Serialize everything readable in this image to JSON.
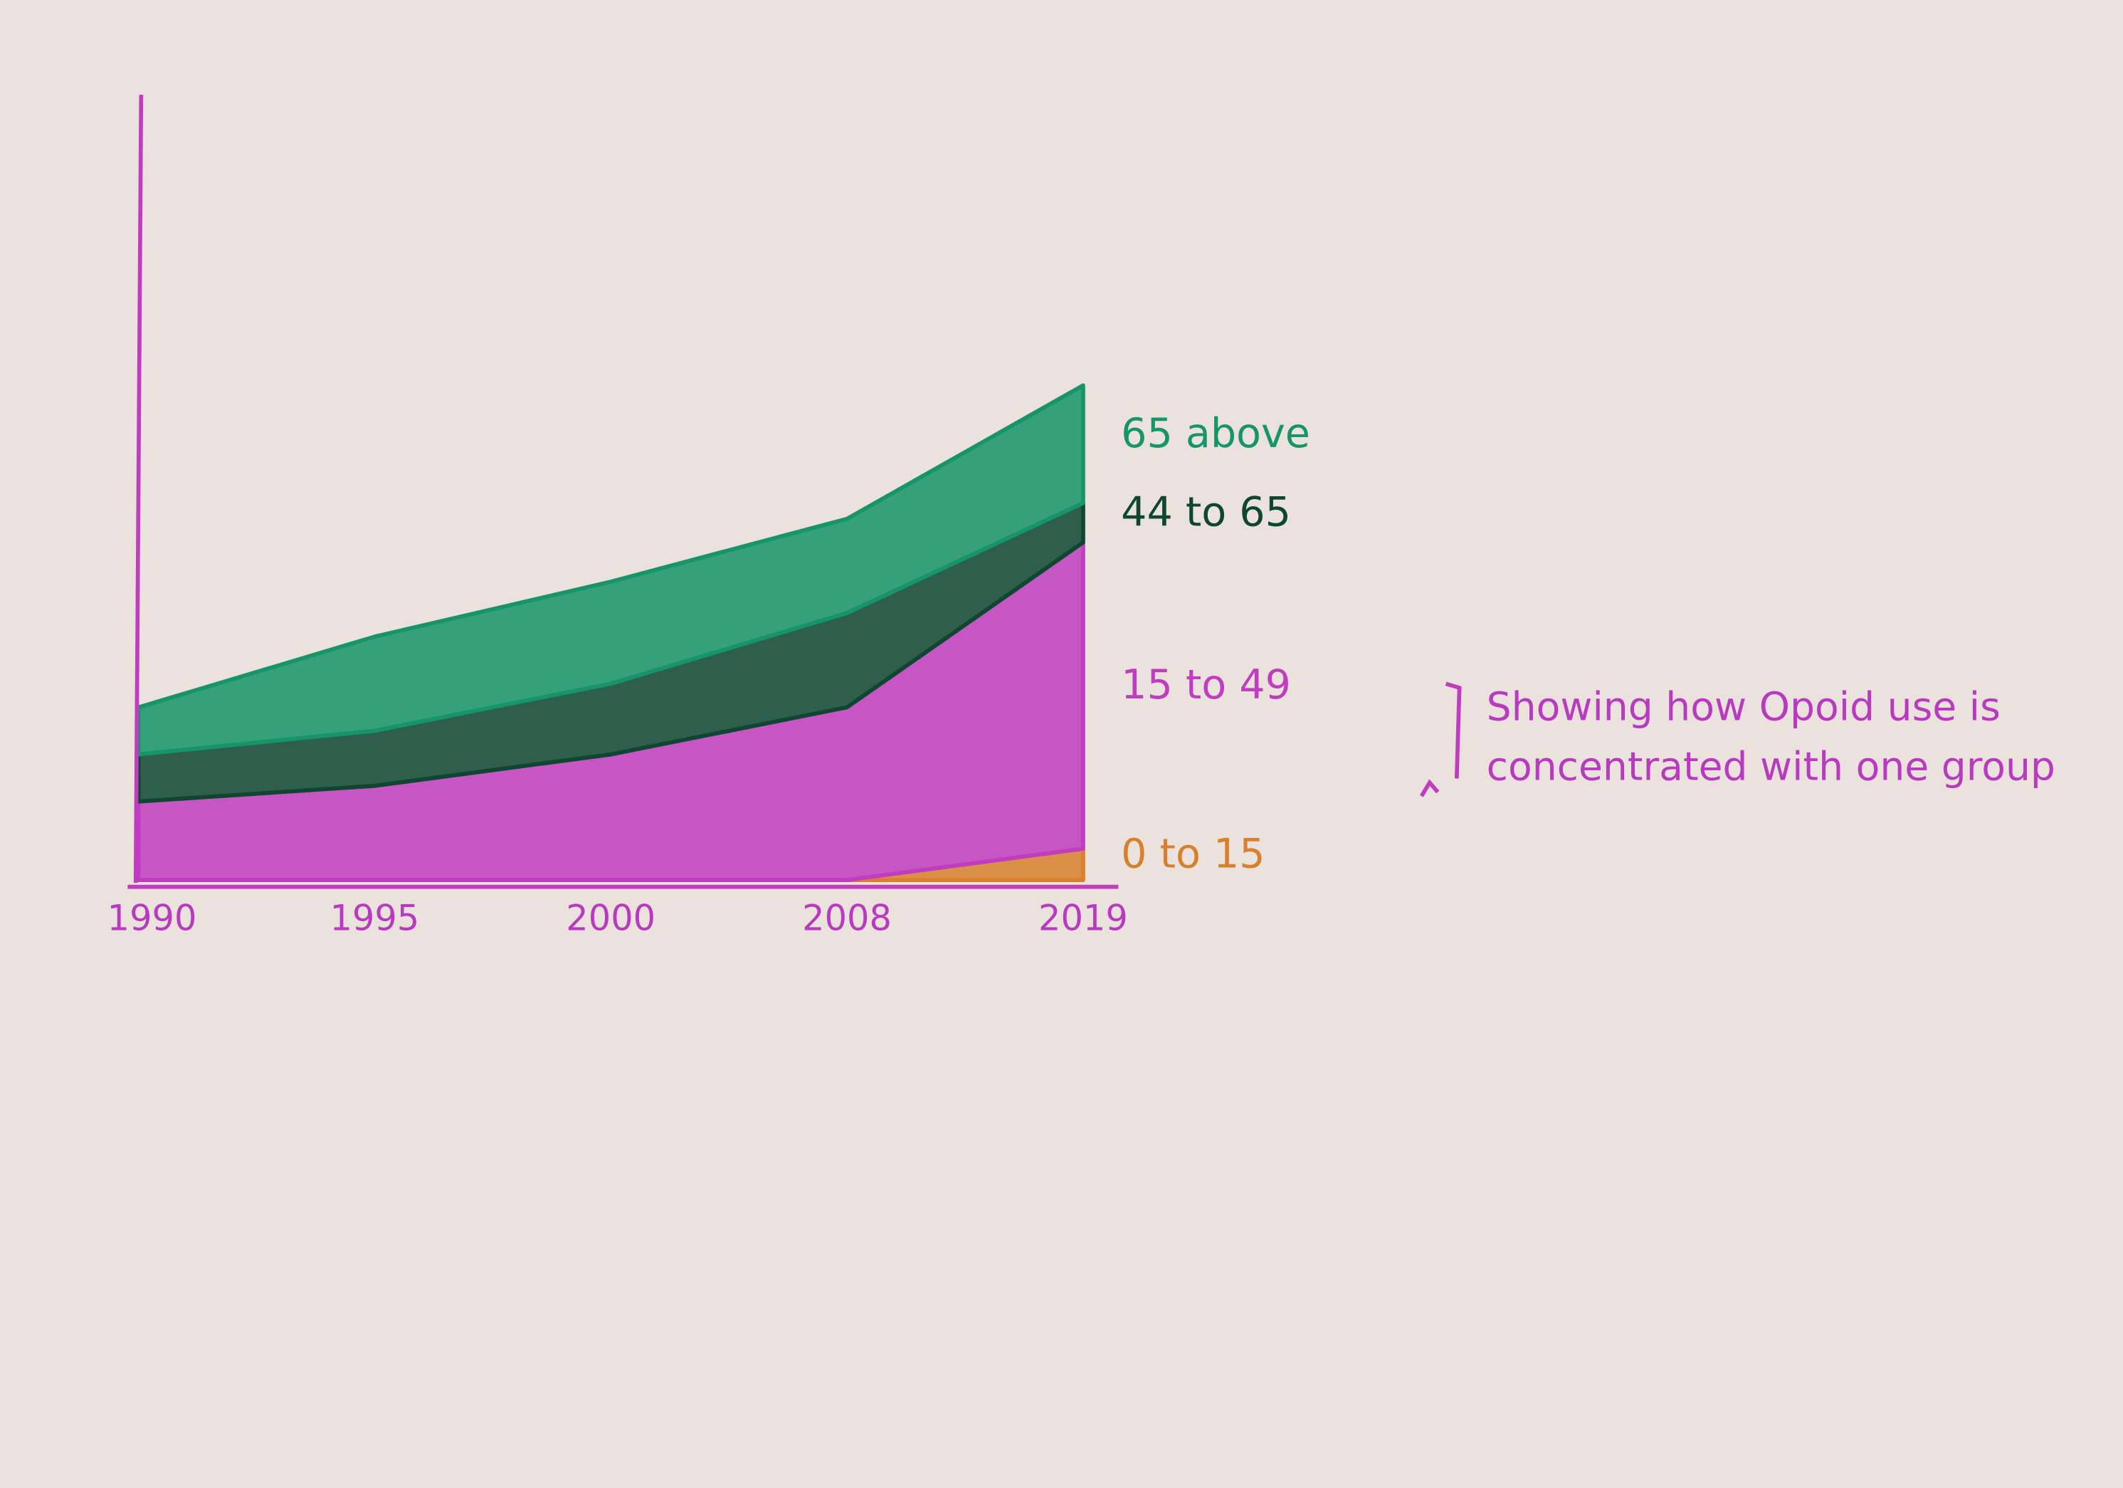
{
  "chart_data": {
    "type": "area",
    "stacked": true,
    "categories": [
      "1990",
      "1995",
      "2000",
      "2008",
      "2019"
    ],
    "series": [
      {
        "name": "0 to 15",
        "color": "#d7812e",
        "values": [
          0,
          0,
          0,
          0,
          4
        ]
      },
      {
        "name": "15 to 49",
        "color": "#c03dbf",
        "values": [
          10,
          12,
          16,
          22,
          39
        ]
      },
      {
        "name": "44 to 65",
        "color": "#0f4632",
        "values": [
          6,
          7,
          9,
          12,
          5
        ]
      },
      {
        "name": "65 above",
        "color": "#16946a",
        "values": [
          6,
          12,
          13,
          12,
          15
        ]
      }
    ],
    "ylim": [
      0,
      100
    ],
    "annotation": "Showing how Opoid use is concentrated with one group"
  }
}
